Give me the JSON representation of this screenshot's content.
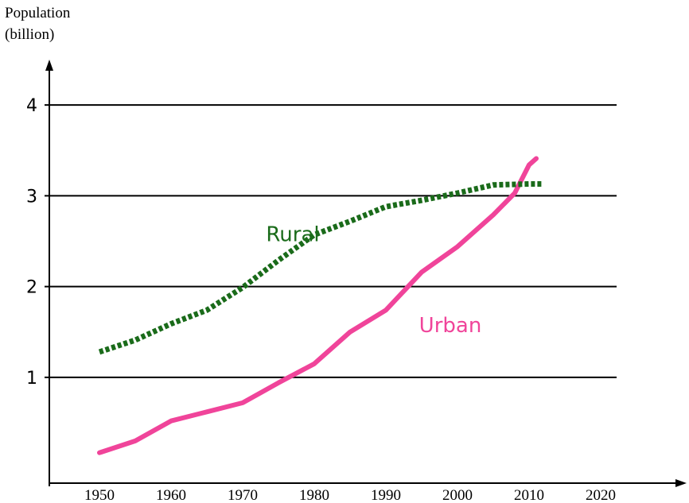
{
  "chart_data": {
    "type": "line",
    "ylabel": [
      "Population",
      "(billion)"
    ],
    "annotations": [
      {
        "text": "Rural",
        "x": 1977,
        "y": 2.5,
        "color": "#1a6b1a"
      },
      {
        "text": "Urban",
        "x": 1999,
        "y": 1.5,
        "color": "#f0449a"
      }
    ],
    "series": [
      {
        "name": "Urban",
        "color": "#f0449a",
        "dash": false,
        "x": [
          1950,
          1955,
          1960,
          1965,
          1970,
          1975,
          1980,
          1985,
          1990,
          1995,
          2000,
          2005,
          2008,
          2010,
          2011
        ],
        "values": [
          0.17,
          0.3,
          0.52,
          0.62,
          0.72,
          0.94,
          1.15,
          1.5,
          1.74,
          2.16,
          2.44,
          2.79,
          3.03,
          3.34,
          3.41
        ]
      },
      {
        "name": "Rural",
        "color": "#1a6b1a",
        "dash": true,
        "x": [
          1950,
          1955,
          1960,
          1965,
          1970,
          1975,
          1980,
          1985,
          1990,
          1995,
          2000,
          2005,
          2010,
          2012
        ],
        "values": [
          1.28,
          1.41,
          1.59,
          1.74,
          1.99,
          2.29,
          2.57,
          2.72,
          2.88,
          2.95,
          3.03,
          3.12,
          3.13,
          3.13
        ]
      }
    ],
    "xlim": [
      1943,
      2032
    ],
    "xticks": [
      1950,
      1960,
      1970,
      1980,
      1990,
      2000,
      2010,
      2020
    ],
    "ylim": [
      -0.2,
      4.5
    ],
    "yticks": [
      1,
      2,
      3,
      4
    ],
    "grid": true
  }
}
